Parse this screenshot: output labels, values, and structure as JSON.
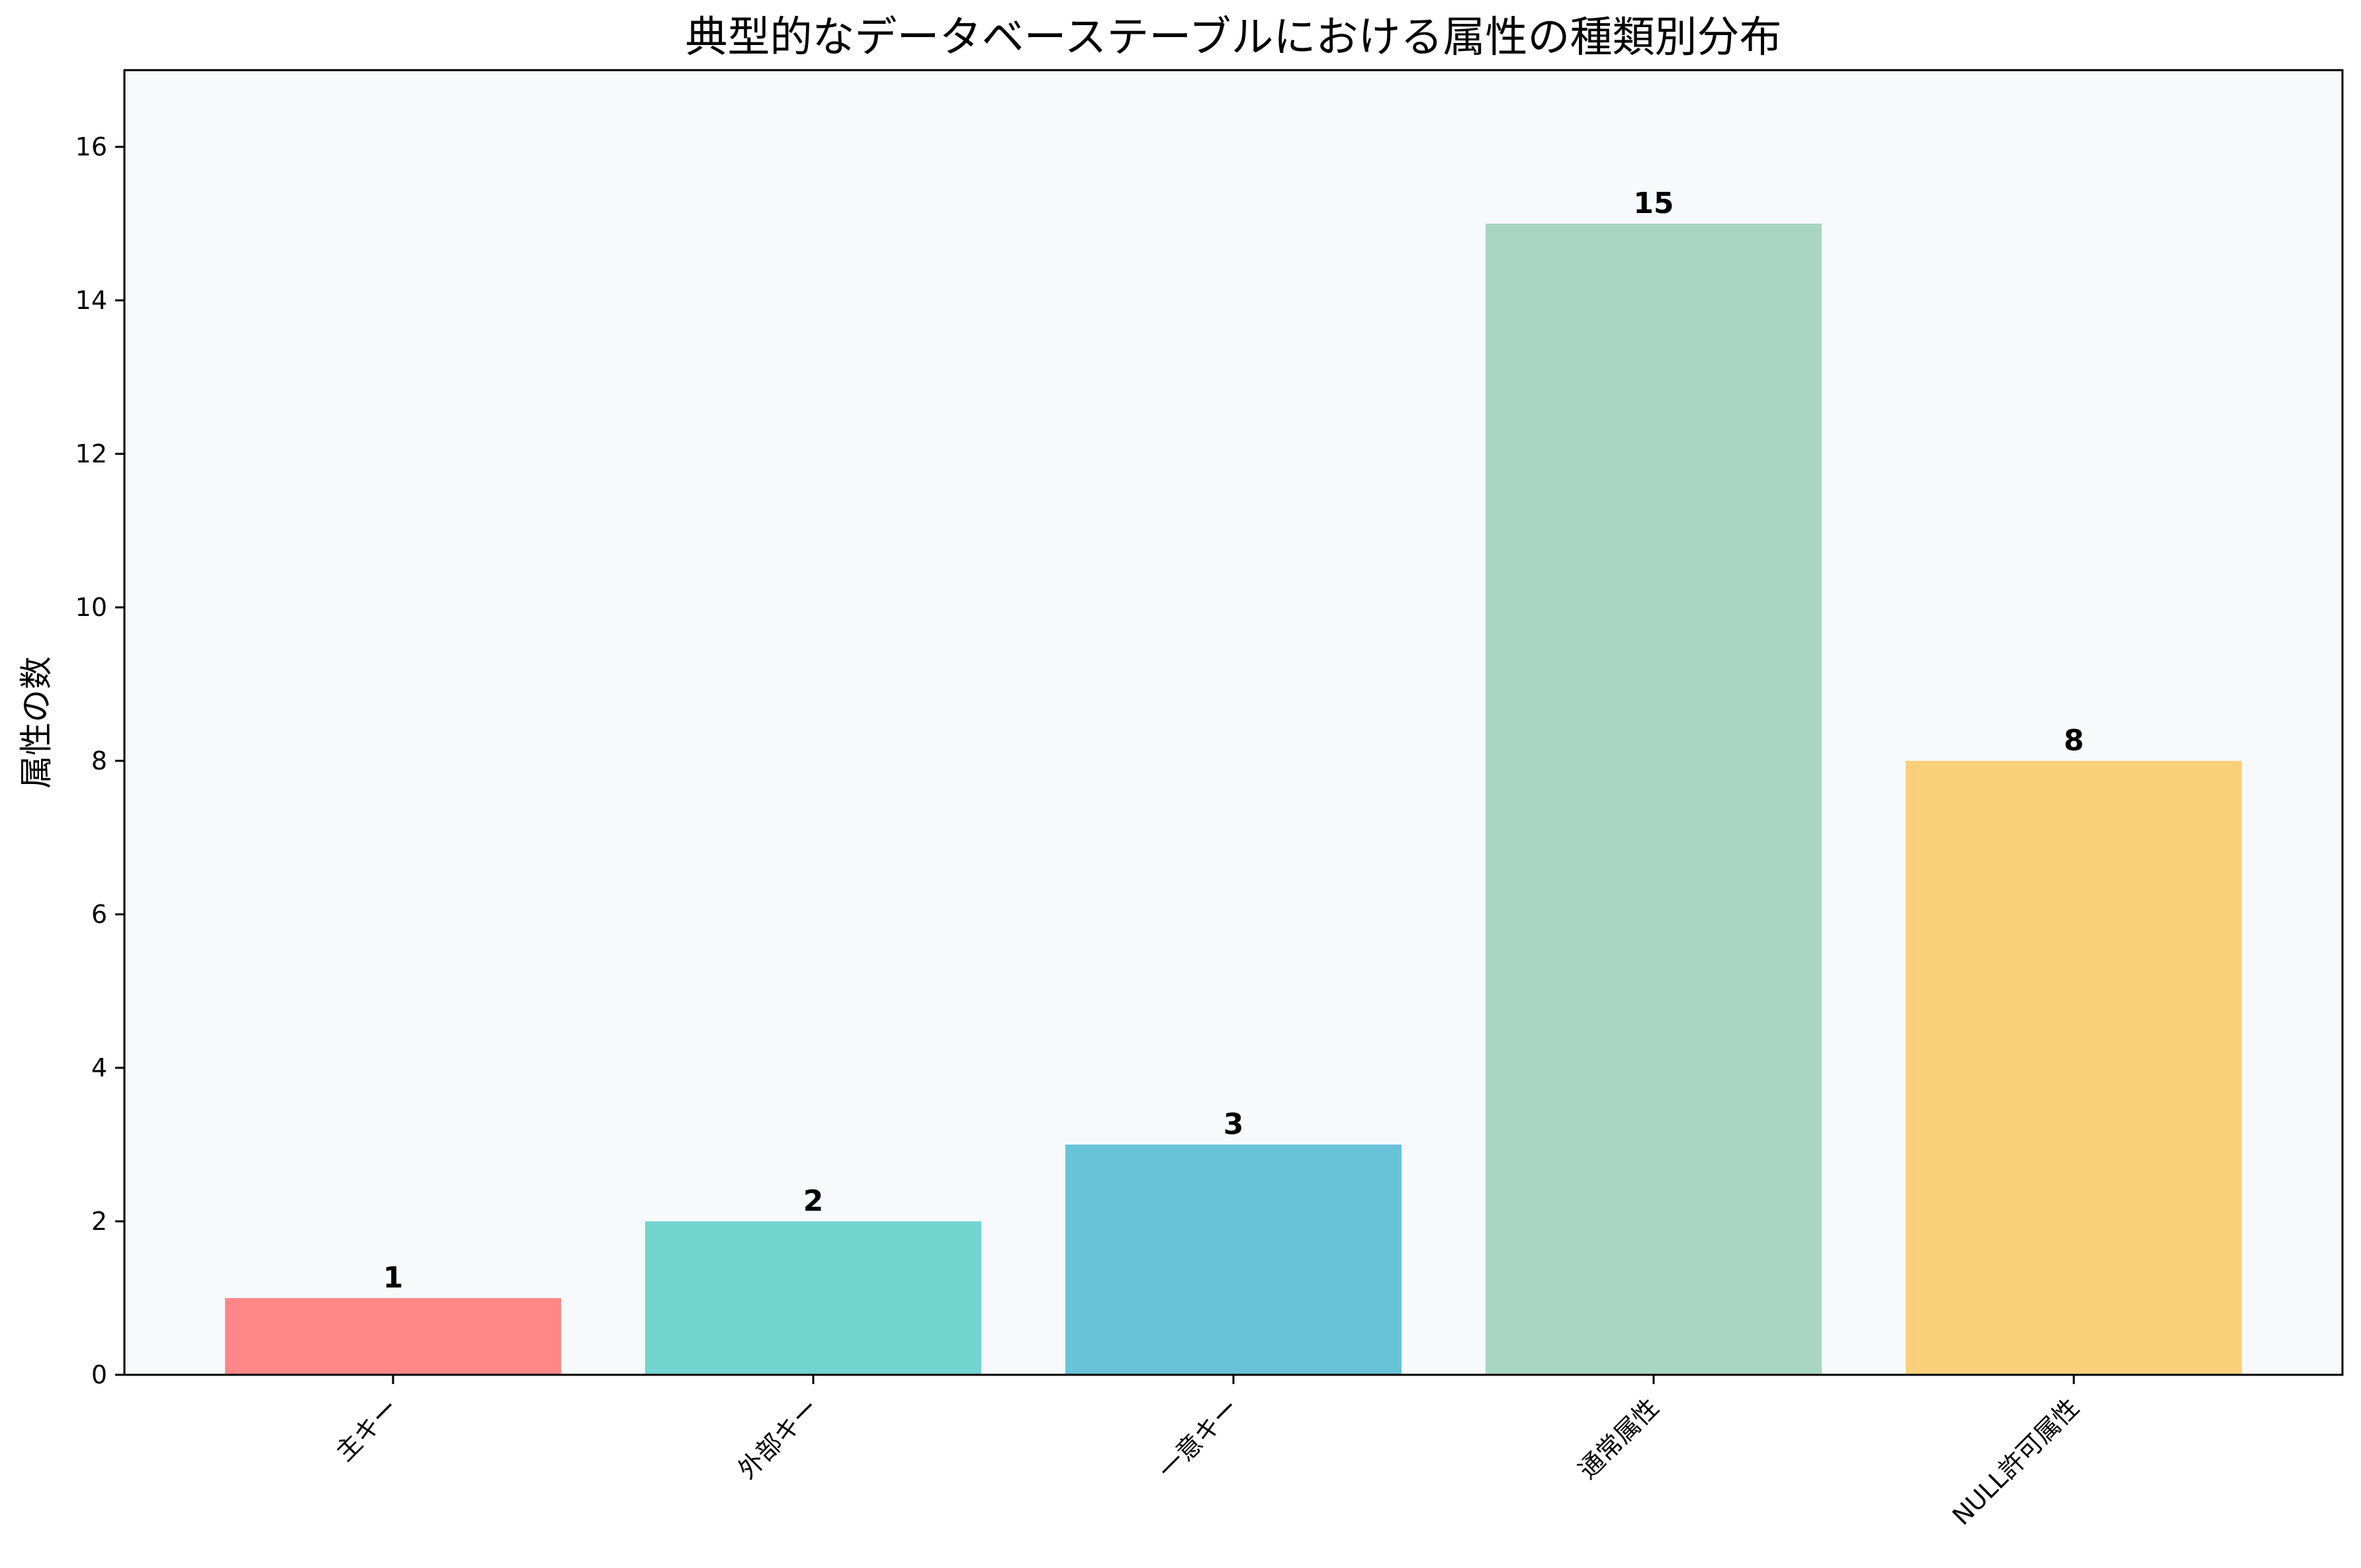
{
  "chart_data": {
    "type": "bar",
    "title": "典型的なデータベーステーブルにおける属性の種類別分布",
    "xlabel": "",
    "ylabel": "属性の数",
    "categories": [
      "主キー",
      "外部キー",
      "一意キー",
      "通常属性",
      "NULL許可属性"
    ],
    "values": [
      1,
      2,
      3,
      15,
      8
    ],
    "data_labels": [
      "1",
      "2",
      "3",
      "15",
      "8"
    ],
    "colors": [
      "#ff8787",
      "#74d4cf",
      "#69c3d8",
      "#a8d6c2",
      "#fad17a"
    ],
    "ylim": [
      0,
      17
    ],
    "yticks": [
      0,
      2,
      4,
      6,
      8,
      10,
      12,
      14,
      16
    ],
    "grid": false,
    "legend": "none",
    "background": "#f7f9fa"
  }
}
